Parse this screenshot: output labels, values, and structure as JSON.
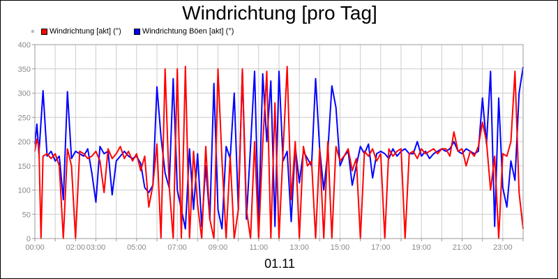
{
  "chart_data": {
    "type": "line",
    "title": "Windrichtung [pro Tag]",
    "xlabel": "01.11",
    "ylabel": "",
    "x_range_hours": [
      0,
      24
    ],
    "ylim": [
      0,
      400
    ],
    "y_ticks": [
      0,
      50,
      100,
      150,
      200,
      250,
      300,
      350,
      400
    ],
    "x_ticks": [
      {
        "h": 0,
        "label": "00:00"
      },
      {
        "h": 2,
        "label": "02:00"
      },
      {
        "h": 3,
        "label": "03:00"
      },
      {
        "h": 5,
        "label": "05:00"
      },
      {
        "h": 7,
        "label": "07:00"
      },
      {
        "h": 9,
        "label": "09:00"
      },
      {
        "h": 11,
        "label": "11:00"
      },
      {
        "h": 13,
        "label": "13:00"
      },
      {
        "h": 15,
        "label": "15:00"
      },
      {
        "h": 17,
        "label": "17:00"
      },
      {
        "h": 19,
        "label": "19:00"
      },
      {
        "h": 21,
        "label": "21:00"
      },
      {
        "h": 23,
        "label": "23:00"
      }
    ],
    "grid": true,
    "legend_position": "top-left",
    "series": [
      {
        "name": "Windrichtung Böen [akt] (°)",
        "color": "#0000ff",
        "points": [
          [
            0,
            195
          ],
          [
            0.1,
            236
          ],
          [
            0.2,
            175
          ],
          [
            0.4,
            305
          ],
          [
            0.6,
            170
          ],
          [
            0.8,
            180
          ],
          [
            1.0,
            160
          ],
          [
            1.2,
            170
          ],
          [
            1.4,
            80
          ],
          [
            1.6,
            303
          ],
          [
            1.8,
            165
          ],
          [
            2.0,
            180
          ],
          [
            2.2,
            175
          ],
          [
            2.4,
            170
          ],
          [
            2.6,
            185
          ],
          [
            2.8,
            135
          ],
          [
            3.0,
            75
          ],
          [
            3.2,
            190
          ],
          [
            3.4,
            175
          ],
          [
            3.6,
            180
          ],
          [
            3.8,
            90
          ],
          [
            4.0,
            160
          ],
          [
            4.2,
            170
          ],
          [
            4.4,
            180
          ],
          [
            4.6,
            170
          ],
          [
            4.8,
            165
          ],
          [
            5.0,
            170
          ],
          [
            5.2,
            155
          ],
          [
            5.4,
            105
          ],
          [
            5.6,
            95
          ],
          [
            5.8,
            110
          ],
          [
            6.0,
            313
          ],
          [
            6.2,
            210
          ],
          [
            6.4,
            135
          ],
          [
            6.6,
            105
          ],
          [
            6.8,
            330
          ],
          [
            7.0,
            100
          ],
          [
            7.2,
            60
          ],
          [
            7.4,
            20
          ],
          [
            7.6,
            185
          ],
          [
            7.8,
            60
          ],
          [
            8.0,
            175
          ],
          [
            8.2,
            25
          ],
          [
            8.4,
            150
          ],
          [
            8.6,
            40
          ],
          [
            8.8,
            320
          ],
          [
            9.0,
            60
          ],
          [
            9.2,
            20
          ],
          [
            9.4,
            190
          ],
          [
            9.6,
            165
          ],
          [
            9.8,
            300
          ],
          [
            10.0,
            60
          ],
          [
            10.2,
            345
          ],
          [
            10.4,
            40
          ],
          [
            10.6,
            190
          ],
          [
            10.8,
            345
          ],
          [
            11.0,
            30
          ],
          [
            11.2,
            340
          ],
          [
            11.4,
            200
          ],
          [
            11.6,
            325
          ],
          [
            11.8,
            25
          ],
          [
            12.0,
            345
          ],
          [
            12.2,
            160
          ],
          [
            12.4,
            180
          ],
          [
            12.6,
            35
          ],
          [
            12.8,
            190
          ],
          [
            13.0,
            115
          ],
          [
            13.2,
            180
          ],
          [
            13.4,
            165
          ],
          [
            13.6,
            150
          ],
          [
            13.8,
            330
          ],
          [
            14.0,
            185
          ],
          [
            14.2,
            100
          ],
          [
            14.4,
            180
          ],
          [
            14.6,
            315
          ],
          [
            14.8,
            270
          ],
          [
            15.0,
            150
          ],
          [
            15.2,
            170
          ],
          [
            15.4,
            180
          ],
          [
            15.6,
            110
          ],
          [
            15.8,
            150
          ],
          [
            16.0,
            190
          ],
          [
            16.2,
            175
          ],
          [
            16.4,
            195
          ],
          [
            16.6,
            125
          ],
          [
            16.8,
            175
          ],
          [
            17.0,
            180
          ],
          [
            17.2,
            175
          ],
          [
            17.4,
            165
          ],
          [
            17.6,
            185
          ],
          [
            17.8,
            170
          ],
          [
            18.0,
            180
          ],
          [
            18.2,
            185
          ],
          [
            18.4,
            175
          ],
          [
            18.6,
            175
          ],
          [
            18.8,
            200
          ],
          [
            19.0,
            170
          ],
          [
            19.2,
            180
          ],
          [
            19.4,
            165
          ],
          [
            19.6,
            175
          ],
          [
            19.8,
            180
          ],
          [
            20.0,
            185
          ],
          [
            20.2,
            180
          ],
          [
            20.4,
            185
          ],
          [
            20.6,
            200
          ],
          [
            20.8,
            180
          ],
          [
            21.0,
            175
          ],
          [
            21.2,
            185
          ],
          [
            21.4,
            180
          ],
          [
            21.6,
            175
          ],
          [
            21.8,
            180
          ],
          [
            22.0,
            290
          ],
          [
            22.2,
            195
          ],
          [
            22.4,
            345
          ],
          [
            22.6,
            25
          ],
          [
            22.8,
            290
          ],
          [
            23.0,
            105
          ],
          [
            23.2,
            65
          ],
          [
            23.4,
            160
          ],
          [
            23.6,
            120
          ],
          [
            23.8,
            300
          ],
          [
            24.0,
            354
          ]
        ]
      },
      {
        "name": "Windrichtung [akt] (°)",
        "color": "#ff0000",
        "points": [
          [
            0,
            180
          ],
          [
            0.1,
            205
          ],
          [
            0.2,
            190
          ],
          [
            0.3,
            0
          ],
          [
            0.4,
            170
          ],
          [
            0.6,
            175
          ],
          [
            0.8,
            165
          ],
          [
            1.0,
            175
          ],
          [
            1.2,
            150
          ],
          [
            1.4,
            0
          ],
          [
            1.6,
            185
          ],
          [
            1.8,
            150
          ],
          [
            2.0,
            0
          ],
          [
            2.2,
            180
          ],
          [
            2.4,
            175
          ],
          [
            2.6,
            165
          ],
          [
            2.8,
            170
          ],
          [
            3.0,
            180
          ],
          [
            3.2,
            160
          ],
          [
            3.4,
            95
          ],
          [
            3.6,
            185
          ],
          [
            3.8,
            165
          ],
          [
            4.0,
            175
          ],
          [
            4.2,
            190
          ],
          [
            4.4,
            165
          ],
          [
            4.6,
            180
          ],
          [
            4.8,
            160
          ],
          [
            5.0,
            175
          ],
          [
            5.2,
            140
          ],
          [
            5.4,
            170
          ],
          [
            5.6,
            65
          ],
          [
            5.8,
            110
          ],
          [
            6.0,
            195
          ],
          [
            6.2,
            0
          ],
          [
            6.4,
            350
          ],
          [
            6.6,
            110
          ],
          [
            6.8,
            0
          ],
          [
            7.0,
            350
          ],
          [
            7.2,
            0
          ],
          [
            7.4,
            355
          ],
          [
            7.6,
            0
          ],
          [
            7.8,
            180
          ],
          [
            8.0,
            70
          ],
          [
            8.2,
            0
          ],
          [
            8.4,
            190
          ],
          [
            8.6,
            40
          ],
          [
            8.8,
            0
          ],
          [
            9.0,
            350
          ],
          [
            9.2,
            160
          ],
          [
            9.4,
            0
          ],
          [
            9.6,
            170
          ],
          [
            9.8,
            0
          ],
          [
            10.0,
            60
          ],
          [
            10.2,
            350
          ],
          [
            10.4,
            60
          ],
          [
            10.6,
            0
          ],
          [
            10.8,
            200
          ],
          [
            11.0,
            0
          ],
          [
            11.2,
            195
          ],
          [
            11.4,
            345
          ],
          [
            11.6,
            0
          ],
          [
            11.8,
            280
          ],
          [
            12.0,
            0
          ],
          [
            12.2,
            180
          ],
          [
            12.4,
            355
          ],
          [
            12.6,
            80
          ],
          [
            12.8,
            200
          ],
          [
            13.0,
            0
          ],
          [
            13.2,
            190
          ],
          [
            13.4,
            150
          ],
          [
            13.6,
            160
          ],
          [
            13.8,
            0
          ],
          [
            14.0,
            185
          ],
          [
            14.2,
            0
          ],
          [
            14.4,
            200
          ],
          [
            14.6,
            0
          ],
          [
            14.8,
            190
          ],
          [
            15.0,
            160
          ],
          [
            15.2,
            170
          ],
          [
            15.4,
            185
          ],
          [
            15.6,
            140
          ],
          [
            15.8,
            165
          ],
          [
            16.0,
            0
          ],
          [
            16.2,
            180
          ],
          [
            16.4,
            170
          ],
          [
            16.6,
            185
          ],
          [
            16.8,
            160
          ],
          [
            17.0,
            175
          ],
          [
            17.2,
            0
          ],
          [
            17.4,
            185
          ],
          [
            17.6,
            170
          ],
          [
            17.8,
            180
          ],
          [
            18.0,
            185
          ],
          [
            18.2,
            0
          ],
          [
            18.4,
            175
          ],
          [
            18.6,
            180
          ],
          [
            18.8,
            165
          ],
          [
            19.0,
            185
          ],
          [
            19.2,
            175
          ],
          [
            19.4,
            180
          ],
          [
            19.6,
            185
          ],
          [
            19.8,
            175
          ],
          [
            20.0,
            185
          ],
          [
            20.2,
            185
          ],
          [
            20.4,
            170
          ],
          [
            20.6,
            220
          ],
          [
            20.8,
            180
          ],
          [
            21.0,
            185
          ],
          [
            21.2,
            150
          ],
          [
            21.4,
            180
          ],
          [
            21.6,
            170
          ],
          [
            21.8,
            190
          ],
          [
            22.0,
            240
          ],
          [
            22.2,
            200
          ],
          [
            22.4,
            100
          ],
          [
            22.6,
            170
          ],
          [
            22.8,
            0
          ],
          [
            23.0,
            175
          ],
          [
            23.2,
            170
          ],
          [
            23.4,
            200
          ],
          [
            23.6,
            345
          ],
          [
            23.8,
            95
          ],
          [
            24.0,
            20
          ]
        ]
      }
    ]
  }
}
